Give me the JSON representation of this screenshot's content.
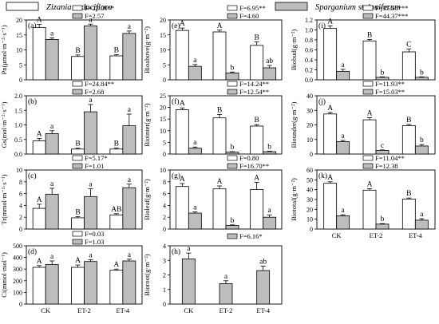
{
  "legend": {
    "items": [
      {
        "label": "Zizania caduciflora",
        "fill": "#ffffff"
      },
      {
        "label": "Sparganium stoloniferum",
        "fill": "#bdbdbd"
      }
    ]
  },
  "chart_data": [
    {
      "type": "bar",
      "panel": "(a)",
      "ylabel": "Pn(μmol·m⁻²·s⁻¹)",
      "ylim": [
        0,
        20
      ],
      "yticks": [
        0,
        5,
        10,
        15,
        20
      ],
      "categories": [
        "CK",
        "ET-2",
        "ET-4"
      ],
      "show_categories": false,
      "series": [
        {
          "name": "Zizania caduciflora",
          "values": [
            17.5,
            7.8,
            8.0
          ],
          "errors": [
            1.0,
            0.5,
            0.4
          ],
          "letters": [
            "A",
            "B",
            "B"
          ]
        },
        {
          "name": "Sparganium stoloniferum",
          "values": [
            13.5,
            18.0,
            15.5
          ],
          "errors": [
            0.5,
            0.6,
            0.8
          ],
          "letters": [
            "a",
            "a",
            "a"
          ]
        }
      ],
      "f_values": [
        "F=22.06**",
        "F=2.57"
      ]
    },
    {
      "type": "bar",
      "panel": "(b)",
      "ylabel": "Gs(mol·m⁻²·s⁻¹)",
      "ylim": [
        0,
        2.0
      ],
      "yticks": [
        0.0,
        0.5,
        1.0,
        1.5,
        2.0
      ],
      "categories": [
        "CK",
        "ET-2",
        "ET-4"
      ],
      "show_categories": false,
      "series": [
        {
          "name": "Zizania caduciflora",
          "values": [
            0.45,
            0.17,
            0.17
          ],
          "errors": [
            0.08,
            0.03,
            0.04
          ],
          "letters": [
            "A",
            "B",
            "B"
          ]
        },
        {
          "name": "Sparganium stoloniferum",
          "values": [
            0.7,
            1.45,
            0.97
          ],
          "errors": [
            0.1,
            0.25,
            0.4
          ],
          "letters": [
            "a",
            "a",
            "a"
          ]
        }
      ],
      "f_values": [
        "F=24.84**",
        "F=2.68"
      ]
    },
    {
      "type": "bar",
      "panel": "(c)",
      "ylabel": "Tr(mmol·m⁻²·s⁻¹)",
      "ylim": [
        0,
        10
      ],
      "yticks": [
        0,
        2,
        4,
        6,
        8,
        10
      ],
      "categories": [
        "CK",
        "ET-2",
        "ET-4"
      ],
      "show_categories": false,
      "series": [
        {
          "name": "Zizania caduciflora",
          "values": [
            3.5,
            1.9,
            2.4
          ],
          "errors": [
            0.7,
            0.2,
            0.2
          ],
          "letters": [
            "A",
            "B",
            "AB"
          ]
        },
        {
          "name": "Sparganium stoloniferum",
          "values": [
            5.9,
            5.5,
            7.0
          ],
          "errors": [
            1.0,
            1.3,
            0.6
          ],
          "letters": [
            "a",
            "a",
            "a"
          ]
        }
      ],
      "f_values": [
        "F=5.17*",
        "F=1.01"
      ]
    },
    {
      "type": "bar",
      "panel": "(d)",
      "ylabel": "Ci(mmol·mol⁻¹)",
      "ylim": [
        0,
        500
      ],
      "yticks": [
        0,
        100,
        200,
        300,
        400,
        500
      ],
      "categories": [
        "CK",
        "ET-2",
        "ET-4"
      ],
      "show_categories": true,
      "series": [
        {
          "name": "Zizania caduciflora",
          "values": [
            315,
            315,
            290
          ],
          "errors": [
            15,
            20,
            10
          ],
          "letters": [
            "A",
            "A",
            "A"
          ]
        },
        {
          "name": "Sparganium stoloniferum",
          "values": [
            340,
            365,
            370
          ],
          "errors": [
            30,
            15,
            15
          ],
          "letters": [
            "a",
            "a",
            "a"
          ]
        }
      ],
      "f_values": [
        "F=0.03",
        "F=1.03"
      ]
    },
    {
      "type": "bar",
      "panel": "(e)",
      "ylabel": "Bioabove(g·m⁻²)",
      "ylim": [
        0,
        20
      ],
      "yticks": [
        0,
        5,
        10,
        15,
        20
      ],
      "categories": [
        "CK",
        "ET-2",
        "ET-4"
      ],
      "show_categories": false,
      "series": [
        {
          "name": "Zizania caduciflora",
          "values": [
            16.5,
            16.0,
            11.5
          ],
          "errors": [
            0.8,
            0.6,
            1.2
          ],
          "letters": [
            "A",
            "A",
            "B"
          ]
        },
        {
          "name": "Sparganium stoloniferum",
          "values": [
            4.5,
            2.3,
            4.0
          ],
          "errors": [
            0.6,
            0.3,
            0.8
          ],
          "letters": [
            "a",
            "b",
            "ab"
          ]
        }
      ],
      "f_values": [
        "F=6.95**",
        "F=4.60"
      ]
    },
    {
      "type": "bar",
      "panel": "(f)",
      "ylabel": "Biointer(g·m⁻²)",
      "ylim": [
        0,
        25
      ],
      "yticks": [
        0,
        5,
        10,
        15,
        20,
        25
      ],
      "categories": [
        "CK",
        "ET-2",
        "ET-4"
      ],
      "show_categories": false,
      "series": [
        {
          "name": "Zizania caduciflora",
          "values": [
            19.0,
            15.5,
            12.0
          ],
          "errors": [
            0.8,
            1.5,
            0.6
          ],
          "letters": [
            "A",
            "B",
            "B"
          ]
        },
        {
          "name": "Sparganium stoloniferum",
          "values": [
            2.5,
            0.8,
            1.0
          ],
          "errors": [
            0.5,
            0.2,
            0.2
          ],
          "letters": [
            "a",
            "b",
            "b"
          ]
        }
      ],
      "f_values": [
        "F=14.24**",
        "F=12.54**"
      ]
    },
    {
      "type": "bar",
      "panel": "(g)",
      "ylabel": "Bioleaf(g·m⁻²)",
      "ylim": [
        0,
        10
      ],
      "yticks": [
        0,
        2,
        4,
        6,
        8,
        10
      ],
      "categories": [
        "CK",
        "ET-2",
        "ET-4"
      ],
      "show_categories": false,
      "series": [
        {
          "name": "Zizania caduciflora",
          "values": [
            7.2,
            6.8,
            6.7
          ],
          "errors": [
            0.5,
            0.5,
            1.2
          ],
          "letters": [
            "A",
            "A",
            "A"
          ]
        },
        {
          "name": "Sparganium stoloniferum",
          "values": [
            2.7,
            0.6,
            2.0
          ],
          "errors": [
            0.2,
            0.1,
            0.4
          ],
          "letters": [
            "a",
            "b",
            "a"
          ]
        }
      ],
      "f_values": [
        "F=0.80",
        "F=16.70**"
      ]
    },
    {
      "type": "bar",
      "panel": "(h)",
      "ylabel": "Bioroot(g·m⁻²)",
      "ylim": [
        0,
        4
      ],
      "yticks": [
        0,
        1,
        2,
        3,
        4
      ],
      "categories": [
        "CK",
        "ET-2",
        "ET-4"
      ],
      "show_categories": true,
      "series": [
        {
          "name": "Sparganium stoloniferum",
          "values": [
            3.1,
            1.4,
            2.3
          ],
          "errors": [
            0.4,
            0.2,
            0.3
          ],
          "letters": [
            "a",
            "a",
            "ab"
          ]
        }
      ],
      "f_values": [
        "F=6.16*"
      ]
    },
    {
      "type": "bar",
      "panel": "(i)",
      "ylabel": "Biobud(g·m⁻²)",
      "ylim": [
        0,
        1.2
      ],
      "yticks": [
        0.0,
        0.2,
        0.4,
        0.6,
        0.8,
        1.0,
        1.2
      ],
      "categories": [
        "CK",
        "ET-2",
        "ET-4"
      ],
      "show_categories": false,
      "series": [
        {
          "name": "Zizania caduciflora",
          "values": [
            1.03,
            0.78,
            0.56
          ],
          "errors": [
            0.05,
            0.03,
            0.06
          ],
          "letters": [
            "A",
            "B",
            "C"
          ]
        },
        {
          "name": "Sparganium stoloniferum",
          "values": [
            0.17,
            0.05,
            0.05
          ],
          "errors": [
            0.04,
            0.01,
            0.01
          ],
          "letters": [
            "a",
            "b",
            "b"
          ]
        }
      ],
      "f_values": [
        "F=35.56***",
        "F=44.37***"
      ]
    },
    {
      "type": "bar",
      "panel": "(j)",
      "ylabel": "Biounder(g·m⁻²)",
      "ylim": [
        0,
        40
      ],
      "yticks": [
        0,
        10,
        20,
        30,
        40
      ],
      "categories": [
        "CK",
        "ET-2",
        "ET-4"
      ],
      "show_categories": false,
      "series": [
        {
          "name": "Zizania caduciflora",
          "values": [
            27.5,
            23.5,
            19.5
          ],
          "errors": [
            1.0,
            1.5,
            0.8
          ],
          "letters": [
            "A",
            "A",
            "B"
          ]
        },
        {
          "name": "Sparganium stoloniferum",
          "values": [
            8.5,
            2.5,
            5.5
          ],
          "errors": [
            0.8,
            0.3,
            1.0
          ],
          "letters": [
            "a",
            "c",
            "b"
          ]
        }
      ],
      "f_values": [
        "F=11.93**",
        "F=15.03**"
      ]
    },
    {
      "type": "bar",
      "panel": "(k)",
      "ylabel": "Biototal(g·m⁻²)",
      "ylim": [
        0,
        60
      ],
      "yticks": [
        0,
        10,
        20,
        30,
        40,
        50,
        60
      ],
      "categories": [
        "CK",
        "ET-2",
        "ET-4"
      ],
      "show_categories": true,
      "series": [
        {
          "name": "Zizania caduciflora",
          "values": [
            46.5,
            39.5,
            30.5
          ],
          "errors": [
            1.5,
            1.5,
            1.0
          ],
          "letters": [
            "A",
            "A",
            "B"
          ]
        },
        {
          "name": "Sparganium stoloniferum",
          "values": [
            13.5,
            5.0,
            9.0
          ],
          "errors": [
            1.0,
            0.5,
            1.5
          ],
          "letters": [
            "a",
            "b",
            "a"
          ]
        }
      ],
      "f_values": [
        "F=11.04**",
        "F=12.38"
      ]
    }
  ]
}
